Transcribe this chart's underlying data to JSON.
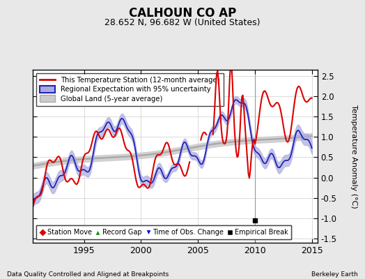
{
  "title": "CALHOUN CO AP",
  "subtitle": "28.652 N, 96.682 W (United States)",
  "ylabel": "Temperature Anomaly (°C)",
  "footer_left": "Data Quality Controlled and Aligned at Breakpoints",
  "footer_right": "Berkeley Earth",
  "xlim": [
    1990.5,
    2015.5
  ],
  "ylim": [
    -1.6,
    2.65
  ],
  "yticks": [
    -1.5,
    -1.0,
    -0.5,
    0.0,
    0.5,
    1.0,
    1.5,
    2.0,
    2.5
  ],
  "xticks": [
    1995,
    2000,
    2005,
    2010,
    2015
  ],
  "bg_color": "#e8e8e8",
  "plot_bg_color": "#ffffff",
  "vertical_line_x": 2010.0,
  "empirical_break_x": 2010.0,
  "empirical_break_y": -1.05,
  "legend1_labels": [
    "This Temperature Station (12-month average)",
    "Regional Expectation with 95% uncertainty",
    "Global Land (5-year average)"
  ],
  "legend2_labels": [
    "Station Move",
    "Record Gap",
    "Time of Obs. Change",
    "Empirical Break"
  ],
  "station_line_color": "#dd0000",
  "regional_line_color": "#2222bb",
  "regional_fill_color": "#aaaadd",
  "global_line_color": "#aaaaaa",
  "global_fill_color": "#cccccc"
}
